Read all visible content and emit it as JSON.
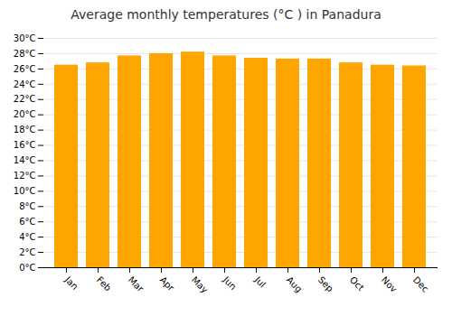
{
  "chart_data": {
    "type": "bar",
    "title": "Average monthly temperatures (°C ) in Panadura",
    "categories": [
      "Jan",
      "Feb",
      "Mar",
      "Apr",
      "May",
      "Jun",
      "Jul",
      "Aug",
      "Sep",
      "Oct",
      "Nov",
      "Dec"
    ],
    "values": [
      26.5,
      26.8,
      27.7,
      28.0,
      28.2,
      27.7,
      27.4,
      27.3,
      27.3,
      26.8,
      26.5,
      26.4
    ],
    "color": "#FFA500",
    "ylim": [
      0,
      30
    ],
    "yticks": [
      {
        "value": 0,
        "label": "0°C"
      },
      {
        "value": 2,
        "label": "2°C"
      },
      {
        "value": 4,
        "label": "4°C"
      },
      {
        "value": 6,
        "label": "6°C"
      },
      {
        "value": 8,
        "label": "8°C"
      },
      {
        "value": 10,
        "label": "10°C"
      },
      {
        "value": 12,
        "label": "12°C"
      },
      {
        "value": 14,
        "label": "14°C"
      },
      {
        "value": 16,
        "label": "16°C"
      },
      {
        "value": 18,
        "label": "18°C"
      },
      {
        "value": 20,
        "label": "20°C"
      },
      {
        "value": 22,
        "label": "22°C"
      },
      {
        "value": 24,
        "label": "24°C"
      },
      {
        "value": 26,
        "label": "26°C"
      },
      {
        "value": 28,
        "label": "28°C"
      },
      {
        "value": 30,
        "label": "30°C"
      }
    ],
    "grid": true
  }
}
